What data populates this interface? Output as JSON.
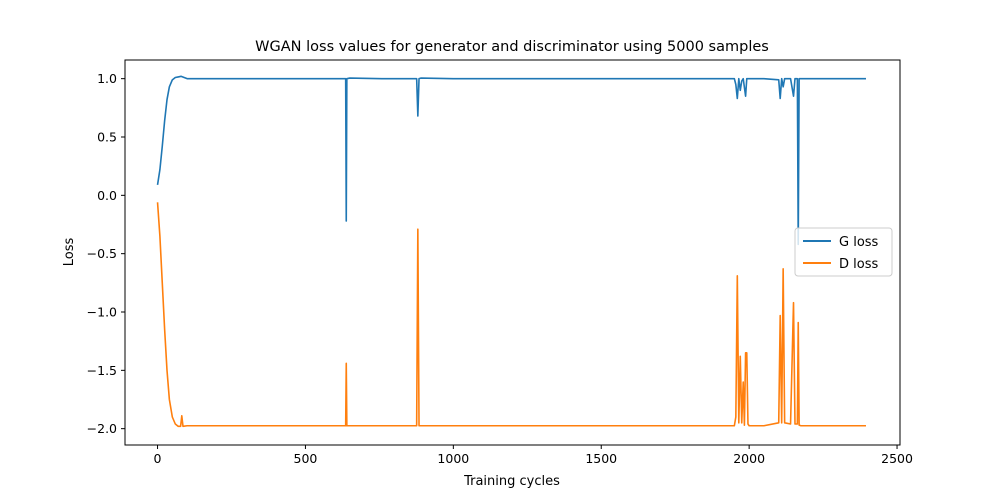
{
  "chart_data": {
    "type": "line",
    "title": "WGAN loss values for generator and discriminator using 5000 samples",
    "xlabel": "Training cycles",
    "ylabel": "Loss",
    "xlim": [
      -110,
      2510
    ],
    "ylim": [
      -2.14,
      1.16
    ],
    "xticks": [
      0,
      500,
      1000,
      1500,
      2000,
      2500
    ],
    "yticks": [
      -2.0,
      -1.5,
      -1.0,
      -0.5,
      0.0,
      0.5,
      1.0
    ],
    "xtick_labels": [
      "0",
      "500",
      "1000",
      "1500",
      "2000",
      "2500"
    ],
    "ytick_labels": [
      "−2.0",
      "−1.5",
      "−1.0",
      "−0.5",
      "0.0",
      "0.5",
      "1.0"
    ],
    "grid": false,
    "legend": "center-right",
    "series": [
      {
        "name": "G loss",
        "color": "#1f77b4",
        "points": [
          [
            0,
            0.09
          ],
          [
            8,
            0.22
          ],
          [
            16,
            0.42
          ],
          [
            24,
            0.64
          ],
          [
            32,
            0.82
          ],
          [
            40,
            0.93
          ],
          [
            50,
            0.99
          ],
          [
            60,
            1.01
          ],
          [
            70,
            1.015
          ],
          [
            80,
            1.02
          ],
          [
            90,
            1.01
          ],
          [
            100,
            1.0
          ],
          [
            200,
            1.0
          ],
          [
            300,
            1.0
          ],
          [
            400,
            1.0
          ],
          [
            500,
            1.0
          ],
          [
            600,
            1.0
          ],
          [
            636,
            1.0
          ],
          [
            638,
            -0.22
          ],
          [
            640,
            1.0
          ],
          [
            650,
            1.005
          ],
          [
            760,
            1.0
          ],
          [
            876,
            1.0
          ],
          [
            880,
            0.68
          ],
          [
            884,
            1.0
          ],
          [
            890,
            1.005
          ],
          [
            1000,
            1.0
          ],
          [
            1200,
            1.0
          ],
          [
            1400,
            1.0
          ],
          [
            1600,
            1.0
          ],
          [
            1800,
            1.0
          ],
          [
            1950,
            1.0
          ],
          [
            1955,
            0.95
          ],
          [
            1960,
            0.83
          ],
          [
            1965,
            1.0
          ],
          [
            1970,
            0.9
          ],
          [
            1975,
            0.98
          ],
          [
            1980,
            1.0
          ],
          [
            1988,
            0.85
          ],
          [
            1992,
            1.0
          ],
          [
            2000,
            1.0
          ],
          [
            2050,
            1.0
          ],
          [
            2100,
            0.99
          ],
          [
            2105,
            0.83
          ],
          [
            2110,
            1.0
          ],
          [
            2115,
            0.93
          ],
          [
            2120,
            1.0
          ],
          [
            2140,
            1.0
          ],
          [
            2150,
            0.85
          ],
          [
            2155,
            1.0
          ],
          [
            2163,
            1.0
          ],
          [
            2166,
            -0.42
          ],
          [
            2169,
            1.0
          ],
          [
            2175,
            1.0
          ],
          [
            2200,
            1.0
          ],
          [
            2300,
            1.0
          ],
          [
            2395,
            1.0
          ]
        ]
      },
      {
        "name": "D loss",
        "color": "#ff7f0e",
        "points": [
          [
            0,
            -0.06
          ],
          [
            8,
            -0.35
          ],
          [
            16,
            -0.75
          ],
          [
            24,
            -1.15
          ],
          [
            32,
            -1.5
          ],
          [
            40,
            -1.75
          ],
          [
            50,
            -1.9
          ],
          [
            60,
            -1.96
          ],
          [
            70,
            -1.98
          ],
          [
            78,
            -1.98
          ],
          [
            82,
            -1.89
          ],
          [
            86,
            -1.98
          ],
          [
            100,
            -1.975
          ],
          [
            200,
            -1.975
          ],
          [
            300,
            -1.975
          ],
          [
            400,
            -1.975
          ],
          [
            500,
            -1.975
          ],
          [
            600,
            -1.975
          ],
          [
            636,
            -1.975
          ],
          [
            638,
            -1.44
          ],
          [
            640,
            -1.975
          ],
          [
            760,
            -1.975
          ],
          [
            876,
            -1.975
          ],
          [
            880,
            -0.29
          ],
          [
            884,
            -1.975
          ],
          [
            1000,
            -1.975
          ],
          [
            1200,
            -1.975
          ],
          [
            1400,
            -1.975
          ],
          [
            1600,
            -1.975
          ],
          [
            1800,
            -1.975
          ],
          [
            1950,
            -1.975
          ],
          [
            1955,
            -1.9
          ],
          [
            1960,
            -0.69
          ],
          [
            1965,
            -1.95
          ],
          [
            1970,
            -1.38
          ],
          [
            1975,
            -1.95
          ],
          [
            1980,
            -1.6
          ],
          [
            1984,
            -1.97
          ],
          [
            1988,
            -1.35
          ],
          [
            1992,
            -1.35
          ],
          [
            1996,
            -1.96
          ],
          [
            2000,
            -1.975
          ],
          [
            2050,
            -1.975
          ],
          [
            2100,
            -1.95
          ],
          [
            2105,
            -1.03
          ],
          [
            2110,
            -1.95
          ],
          [
            2115,
            -0.63
          ],
          [
            2120,
            -1.95
          ],
          [
            2140,
            -1.96
          ],
          [
            2150,
            -0.92
          ],
          [
            2155,
            -1.96
          ],
          [
            2163,
            -1.96
          ],
          [
            2166,
            -1.09
          ],
          [
            2169,
            -1.97
          ],
          [
            2175,
            -1.975
          ],
          [
            2200,
            -1.975
          ],
          [
            2300,
            -1.975
          ],
          [
            2395,
            -1.975
          ]
        ]
      }
    ]
  }
}
